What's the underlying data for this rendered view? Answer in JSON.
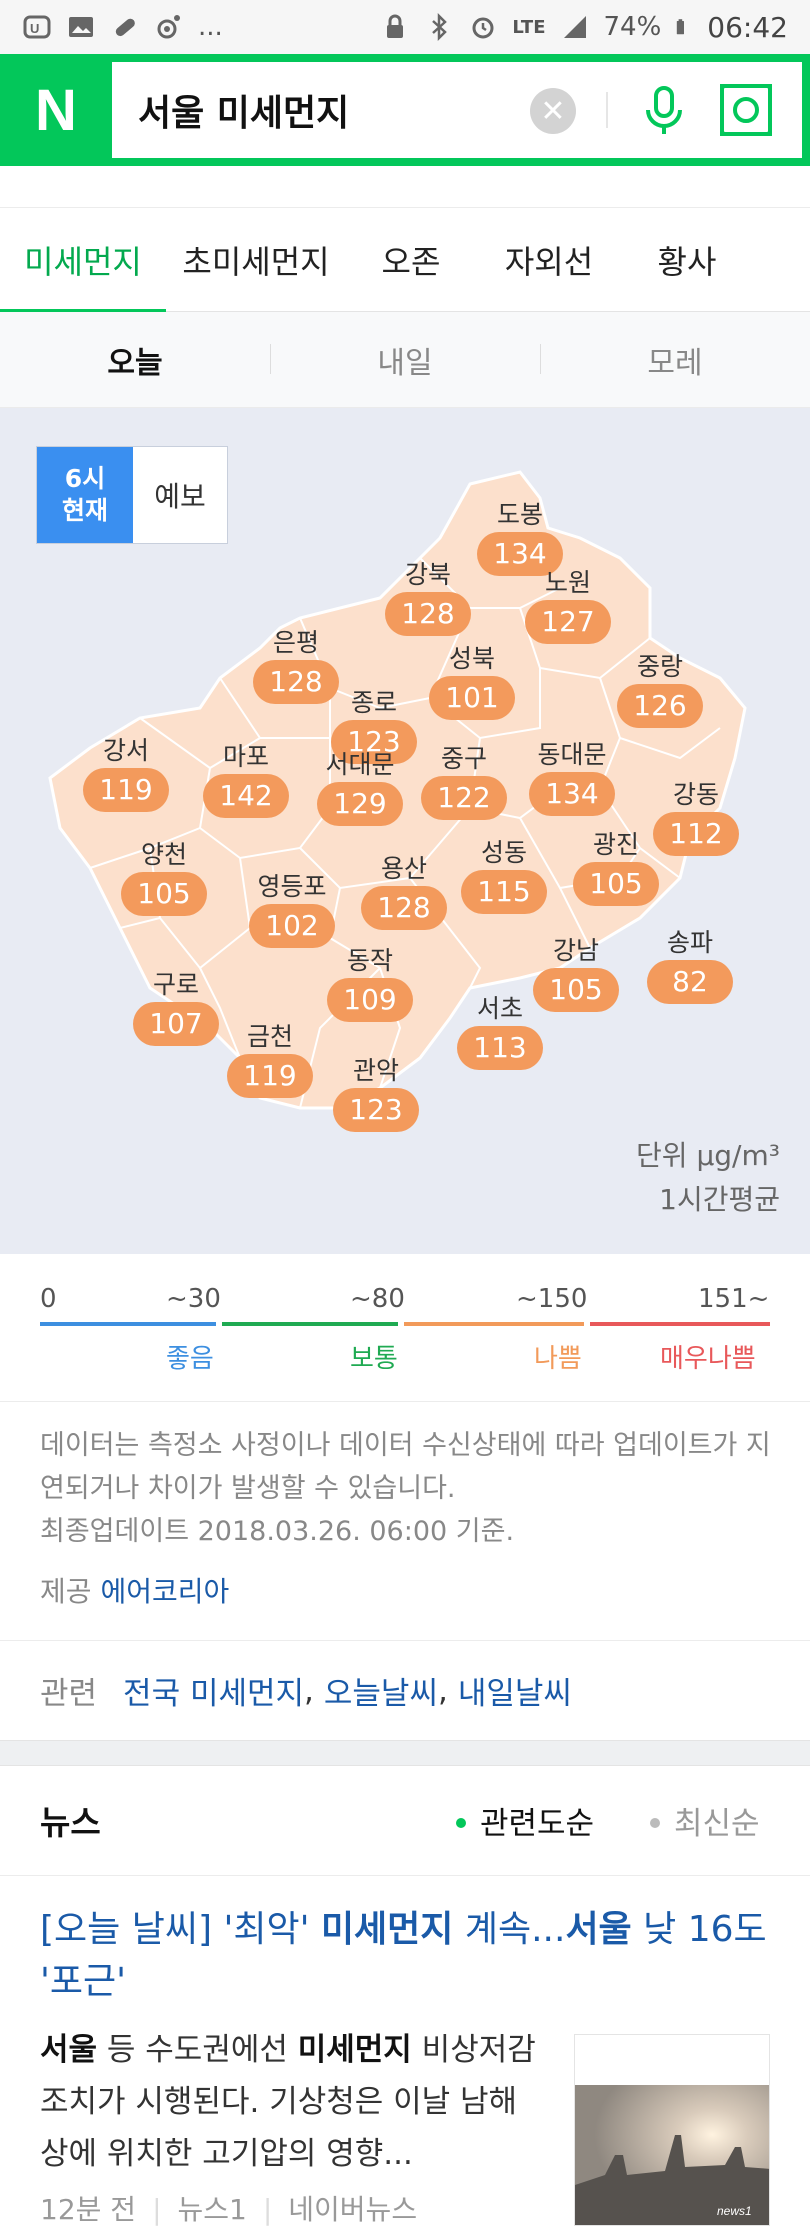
{
  "status": {
    "signal": "LTE",
    "battery": "74%",
    "time": "06:42",
    "more": "..."
  },
  "search": {
    "logo": "N",
    "query": "서울 미세먼지"
  },
  "tabs": [
    "미세먼지",
    "초미세먼지",
    "오존",
    "자외선",
    "황사"
  ],
  "day_tabs": [
    "오늘",
    "내일",
    "모레"
  ],
  "map": {
    "toggle_now_line1": "6시",
    "toggle_now_line2": "현재",
    "toggle_forecast": "예보",
    "unit_line1": "단위 µg/m³",
    "unit_line2": "1시간평균",
    "districts": [
      {
        "name": "도봉",
        "value": "134"
      },
      {
        "name": "강북",
        "value": "128"
      },
      {
        "name": "노원",
        "value": "127"
      },
      {
        "name": "은평",
        "value": "128"
      },
      {
        "name": "성북",
        "value": "101"
      },
      {
        "name": "중랑",
        "value": "126"
      },
      {
        "name": "종로",
        "value": "123"
      },
      {
        "name": "강서",
        "value": "119"
      },
      {
        "name": "마포",
        "value": "142"
      },
      {
        "name": "서대문",
        "value": "129"
      },
      {
        "name": "중구",
        "value": "122"
      },
      {
        "name": "동대문",
        "value": "134"
      },
      {
        "name": "강동",
        "value": "112"
      },
      {
        "name": "양천",
        "value": "105"
      },
      {
        "name": "영등포",
        "value": "102"
      },
      {
        "name": "용산",
        "value": "128"
      },
      {
        "name": "성동",
        "value": "115"
      },
      {
        "name": "광진",
        "value": "105"
      },
      {
        "name": "송파",
        "value": "82"
      },
      {
        "name": "구로",
        "value": "107"
      },
      {
        "name": "동작",
        "value": "109"
      },
      {
        "name": "강남",
        "value": "105"
      },
      {
        "name": "금천",
        "value": "119"
      },
      {
        "name": "서초",
        "value": "113"
      },
      {
        "name": "관악",
        "value": "123"
      }
    ]
  },
  "scale": {
    "ticks": [
      "0",
      "~30",
      "~80",
      "~150",
      "151~"
    ],
    "levels": [
      {
        "label": "좋음",
        "color": "#3d8fe0"
      },
      {
        "label": "보통",
        "color": "#1faa52"
      },
      {
        "label": "나쁨",
        "color": "#f29a5a"
      },
      {
        "label": "매우나쁨",
        "color": "#e8585a"
      }
    ]
  },
  "notice": {
    "text": "데이터는 측정소 사정이나 데이터 수신상태에 따라 업데이트가 지연되거나 차이가 발생할 수 있습니다.",
    "updated": "최종업데이트 2018.03.26. 06:00 기준.",
    "provider_label": "제공",
    "provider_link": "에어코리아"
  },
  "related": {
    "label": "관련",
    "links": [
      "전국 미세먼지",
      "오늘날씨",
      "내일날씨"
    ],
    "separator": ","
  },
  "news": {
    "title": "뉴스",
    "sort_relevance": "관련도순",
    "sort_latest": "최신순",
    "headline_part1": "[오늘 날씨] '최악' ",
    "headline_bold1": "미세먼지",
    "headline_part2": " 계속...",
    "headline_bold2": "서울",
    "headline_part3": " 낮 16도 '포근'",
    "snippet_bold1": "서울",
    "snippet_part1": " 등 수도권에선 ",
    "snippet_bold2": "미세먼지",
    "snippet_part2": " 비상저감조치가 시행된다. 기상청은 이날 남해상에 위치한 고기압의 영향...",
    "meta_time": "12분 전",
    "meta_source": "뉴스1",
    "meta_portal": "네이버뉴스",
    "thumb_watermark": "news1"
  }
}
